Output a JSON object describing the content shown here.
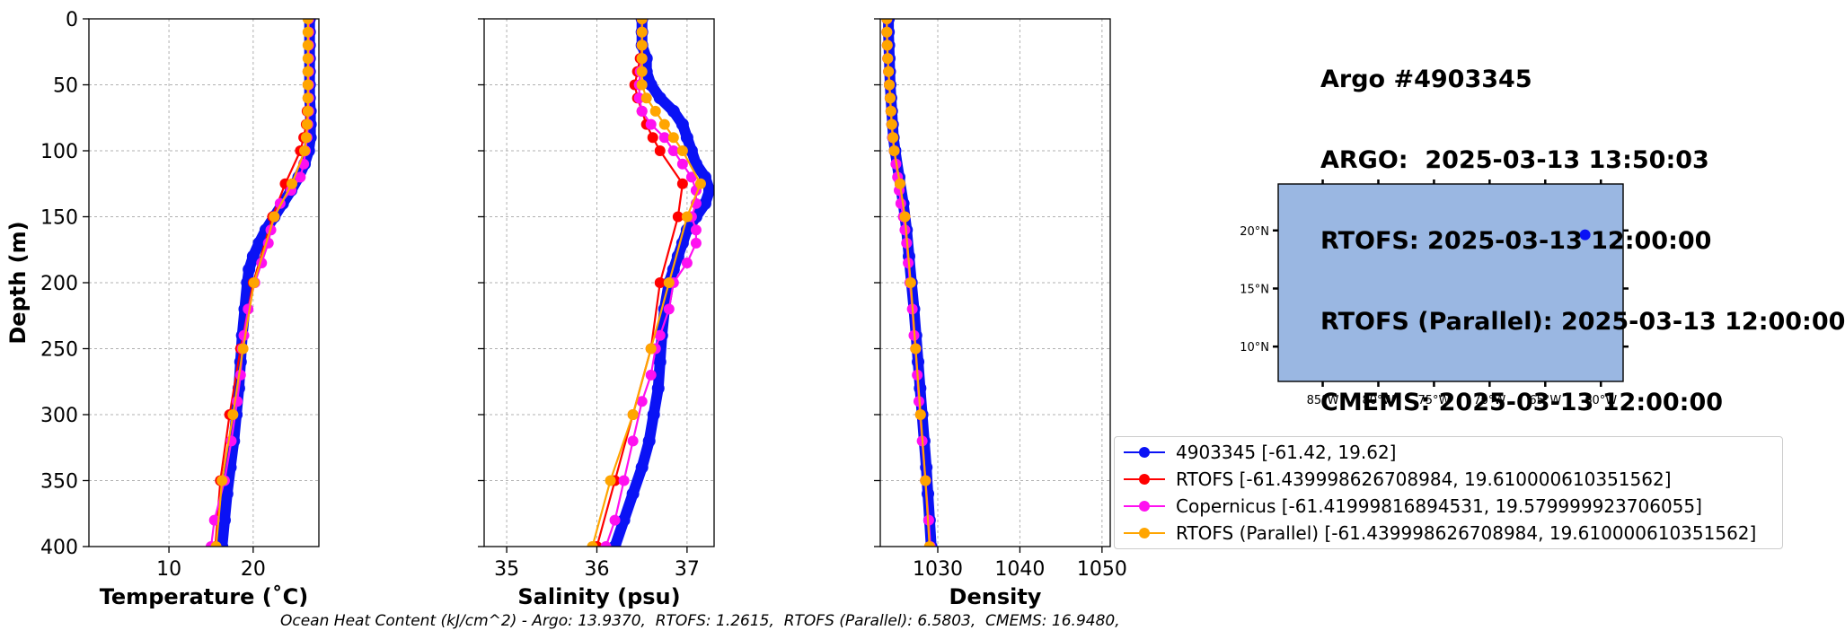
{
  "title": {
    "lines": [
      "Argo #4903345",
      "ARGO:  2025-03-13 13:50:03",
      "RTOFS: 2025-03-13 12:00:00",
      "RTOFS (Parallel): 2025-03-13 12:00:00",
      "CMEMS: 2025-03-13 12:00:00"
    ]
  },
  "colors": {
    "argo": "#0a12f5",
    "rtofs": "#ff0000",
    "copernicus": "#ff10f0",
    "rtofs_parallel": "#ffa500"
  },
  "legend": {
    "items": [
      {
        "key": "argo",
        "label": "4903345 [-61.42, 19.62]"
      },
      {
        "key": "rtofs",
        "label": "RTOFS [-61.439998626708984, 19.610000610351562]"
      },
      {
        "key": "copernicus",
        "label": "Copernicus [-61.41999816894531, 19.579999923706055]"
      },
      {
        "key": "rtofs_parallel",
        "label": "RTOFS (Parallel) [-61.439998626708984, 19.610000610351562]"
      }
    ]
  },
  "footer": "Ocean Heat Content (kJ/cm^2) - Argo: 13.9370,  RTOFS: 1.2615,  RTOFS (Parallel): 6.5803,  CMEMS: 16.9480,",
  "chart_data": [
    {
      "type": "line",
      "xlabel": "Temperature (˚C)",
      "ylabel": "Depth (m)",
      "xlim": [
        0.5,
        27.8
      ],
      "ylim": [
        400,
        0
      ],
      "xticks": [
        10,
        20
      ],
      "yticks": [
        0,
        50,
        100,
        150,
        200,
        250,
        300,
        350,
        400
      ],
      "grid": true,
      "series": [
        {
          "key": "argo",
          "depth": [
            0,
            10,
            20,
            30,
            40,
            50,
            60,
            70,
            80,
            90,
            100,
            110,
            120,
            130,
            140,
            150,
            160,
            170,
            180,
            190,
            200,
            220,
            240,
            260,
            280,
            300,
            320,
            340,
            360,
            380,
            400
          ],
          "values": [
            26.7,
            26.7,
            26.7,
            26.7,
            26.7,
            26.7,
            26.7,
            26.8,
            26.8,
            26.8,
            26.6,
            26.1,
            25.4,
            24.5,
            23.5,
            22.5,
            21.5,
            20.7,
            20.0,
            19.5,
            19.3,
            19.0,
            18.7,
            18.5,
            18.3,
            18.0,
            17.7,
            17.3,
            16.9,
            16.6,
            16.3
          ]
        },
        {
          "key": "rtofs",
          "depth": [
            0,
            10,
            20,
            30,
            40,
            50,
            60,
            70,
            80,
            90,
            100,
            125,
            150,
            200,
            250,
            300,
            350,
            400
          ],
          "values": [
            26.6,
            26.6,
            26.6,
            26.6,
            26.5,
            26.5,
            26.5,
            26.4,
            26.3,
            26.0,
            25.6,
            23.8,
            22.3,
            20.0,
            18.5,
            17.2,
            16.1,
            15.5
          ]
        },
        {
          "key": "copernicus",
          "depth": [
            0,
            10,
            20,
            30,
            40,
            50,
            60,
            70,
            80,
            90,
            100,
            110,
            120,
            130,
            140,
            150,
            160,
            170,
            185,
            200,
            220,
            240,
            250,
            270,
            290,
            320,
            350,
            380,
            400
          ],
          "values": [
            26.6,
            26.6,
            26.6,
            26.6,
            26.6,
            26.6,
            26.6,
            26.6,
            26.5,
            26.4,
            26.2,
            26.0,
            25.6,
            24.5,
            23.2,
            22.5,
            22.1,
            21.8,
            21.0,
            20.2,
            19.4,
            18.9,
            18.7,
            18.5,
            18.1,
            17.4,
            16.6,
            15.4,
            15.0
          ]
        },
        {
          "key": "rtofs_parallel",
          "depth": [
            0,
            10,
            20,
            30,
            40,
            50,
            60,
            70,
            80,
            90,
            100,
            125,
            150,
            200,
            250,
            300,
            350,
            400
          ],
          "values": [
            26.5,
            26.5,
            26.5,
            26.5,
            26.5,
            26.5,
            26.5,
            26.5,
            26.4,
            26.3,
            26.1,
            24.6,
            22.5,
            20.1,
            18.8,
            17.6,
            16.3,
            15.6
          ]
        }
      ]
    },
    {
      "type": "line",
      "xlabel": "Salinity (psu)",
      "ylabel": "",
      "xlim": [
        34.75,
        37.3
      ],
      "ylim": [
        400,
        0
      ],
      "xticks": [
        35,
        36,
        37
      ],
      "yticks": [
        0,
        50,
        100,
        150,
        200,
        250,
        300,
        350,
        400
      ],
      "grid": true,
      "series": [
        {
          "key": "argo",
          "depth": [
            0,
            10,
            20,
            30,
            40,
            50,
            60,
            70,
            80,
            90,
            100,
            110,
            120,
            130,
            140,
            150,
            160,
            170,
            180,
            190,
            200,
            220,
            240,
            260,
            280,
            300,
            320,
            340,
            360,
            380,
            400
          ],
          "values": [
            36.5,
            36.5,
            36.5,
            36.55,
            36.55,
            36.6,
            36.7,
            36.85,
            36.95,
            37.0,
            37.05,
            37.1,
            37.2,
            37.25,
            37.2,
            37.1,
            37.0,
            36.95,
            36.9,
            36.85,
            36.8,
            36.75,
            36.72,
            36.7,
            36.68,
            36.63,
            36.58,
            36.5,
            36.4,
            36.3,
            36.2
          ]
        },
        {
          "key": "rtofs",
          "depth": [
            0,
            10,
            20,
            30,
            40,
            50,
            60,
            70,
            80,
            90,
            100,
            125,
            150,
            200,
            250,
            300,
            350,
            400
          ],
          "values": [
            36.5,
            36.5,
            36.5,
            36.48,
            36.45,
            36.42,
            36.45,
            36.5,
            36.55,
            36.62,
            36.7,
            36.95,
            36.9,
            36.7,
            36.6,
            36.4,
            36.2,
            36.0
          ]
        },
        {
          "key": "copernicus",
          "depth": [
            0,
            10,
            20,
            30,
            40,
            50,
            60,
            70,
            80,
            90,
            100,
            110,
            120,
            130,
            140,
            150,
            160,
            170,
            185,
            200,
            220,
            240,
            250,
            270,
            290,
            320,
            350,
            380,
            400
          ],
          "values": [
            36.5,
            36.5,
            36.5,
            36.5,
            36.48,
            36.47,
            36.47,
            36.5,
            36.6,
            36.75,
            36.85,
            36.95,
            37.05,
            37.1,
            37.1,
            37.05,
            37.1,
            37.1,
            37.0,
            36.85,
            36.8,
            36.7,
            36.65,
            36.6,
            36.5,
            36.4,
            36.3,
            36.2,
            36.1
          ]
        },
        {
          "key": "rtofs_parallel",
          "depth": [
            0,
            10,
            20,
            30,
            40,
            50,
            60,
            70,
            80,
            90,
            100,
            125,
            150,
            200,
            250,
            300,
            350,
            400
          ],
          "values": [
            36.5,
            36.5,
            36.5,
            36.5,
            36.5,
            36.5,
            36.55,
            36.65,
            36.75,
            36.85,
            36.95,
            37.15,
            37.0,
            36.8,
            36.6,
            36.4,
            36.15,
            35.95
          ]
        }
      ]
    },
    {
      "type": "line",
      "xlabel": "Density",
      "ylabel": "",
      "xlim": [
        1023,
        1051
      ],
      "ylim": [
        400,
        0
      ],
      "xticks": [
        1030,
        1040,
        1050
      ],
      "yticks": [
        0,
        50,
        100,
        150,
        200,
        250,
        300,
        350,
        400
      ],
      "grid": true,
      "series": [
        {
          "key": "argo",
          "depth": [
            0,
            10,
            20,
            30,
            40,
            50,
            60,
            70,
            80,
            90,
            100,
            120,
            140,
            160,
            180,
            200,
            220,
            240,
            260,
            280,
            300,
            320,
            340,
            360,
            380,
            400
          ],
          "values": [
            1024.0,
            1024.0,
            1024.05,
            1024.1,
            1024.15,
            1024.2,
            1024.3,
            1024.4,
            1024.5,
            1024.6,
            1024.8,
            1025.3,
            1025.8,
            1026.2,
            1026.5,
            1026.8,
            1027.1,
            1027.35,
            1027.6,
            1027.85,
            1028.1,
            1028.35,
            1028.6,
            1028.8,
            1029.0,
            1029.2
          ]
        },
        {
          "key": "rtofs",
          "depth": [
            0,
            10,
            20,
            30,
            40,
            50,
            60,
            70,
            80,
            90,
            100,
            125,
            150,
            200,
            250,
            300,
            350,
            400
          ],
          "values": [
            1023.8,
            1023.8,
            1023.85,
            1023.9,
            1024.0,
            1024.1,
            1024.2,
            1024.3,
            1024.4,
            1024.55,
            1024.7,
            1025.4,
            1026.0,
            1026.7,
            1027.3,
            1027.9,
            1028.5,
            1029.0
          ]
        },
        {
          "key": "copernicus",
          "depth": [
            0,
            10,
            20,
            30,
            40,
            50,
            60,
            70,
            80,
            90,
            100,
            110,
            120,
            130,
            140,
            150,
            160,
            170,
            185,
            200,
            220,
            240,
            250,
            270,
            290,
            320,
            350,
            380,
            400
          ],
          "values": [
            1023.8,
            1023.8,
            1023.85,
            1023.9,
            1024.0,
            1024.1,
            1024.2,
            1024.3,
            1024.4,
            1024.5,
            1024.7,
            1024.9,
            1025.1,
            1025.3,
            1025.5,
            1025.8,
            1026.0,
            1026.2,
            1026.4,
            1026.6,
            1026.9,
            1027.1,
            1027.3,
            1027.5,
            1027.7,
            1028.1,
            1028.5,
            1028.9,
            1029.1
          ]
        },
        {
          "key": "rtofs_parallel",
          "depth": [
            0,
            10,
            20,
            30,
            40,
            50,
            60,
            70,
            80,
            90,
            100,
            125,
            150,
            200,
            250,
            300,
            350,
            400
          ],
          "values": [
            1023.8,
            1023.8,
            1023.85,
            1023.9,
            1024.0,
            1024.1,
            1024.2,
            1024.3,
            1024.4,
            1024.55,
            1024.7,
            1025.4,
            1026.0,
            1026.7,
            1027.3,
            1027.9,
            1028.5,
            1029.0
          ]
        }
      ]
    }
  ],
  "map": {
    "lon_ticks": [
      "85°W",
      "80°W",
      "75°W",
      "70°W",
      "65°W",
      "60°W"
    ],
    "lat_ticks": [
      "20°N",
      "15°N",
      "10°N"
    ],
    "lon_range": [
      -89,
      -58
    ],
    "lat_range": [
      7,
      24
    ],
    "float_position": [
      -61.42,
      19.62
    ],
    "colors": {
      "ocean": "#9ab7e2",
      "land": "#d2b48c",
      "streamlines": "#d4d4d4",
      "marker": "#0a12f5"
    }
  }
}
